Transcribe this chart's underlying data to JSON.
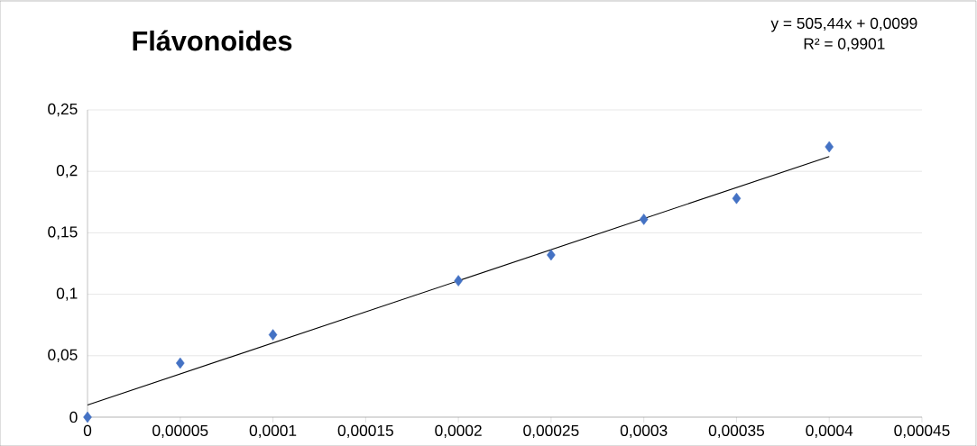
{
  "chart_data": {
    "type": "scatter",
    "title": "Flávonoides",
    "annotations": [
      "y = 505,44x + 0,0099",
      "R² = 0,9901"
    ],
    "series": [
      {
        "color": "#4472c4",
        "marker": "diamond",
        "x": [
          0,
          5e-05,
          0.0001,
          0.0002,
          0.00025,
          0.0003,
          0.00035,
          0.0004
        ],
        "values": [
          0,
          0.044,
          0.067,
          0.111,
          0.132,
          0.161,
          0.178,
          0.22
        ]
      },
      {
        "type": "line",
        "color": "#000000",
        "marker": "none",
        "x": [
          0,
          0.0004
        ],
        "values": [
          0.0099,
          0.2121
        ]
      }
    ],
    "xlim": [
      0,
      0.00045
    ],
    "ylim": [
      0,
      0.25
    ],
    "xticks": [
      0,
      {
        "value": 5e-05,
        "label": "0,00005"
      },
      {
        "value": 0.0001,
        "label": "0,0001"
      },
      {
        "value": 0.00015,
        "label": "0,00015"
      },
      {
        "value": 0.0002,
        "label": "0,0002"
      },
      {
        "value": 0.00025,
        "label": "0,00025"
      },
      {
        "value": 0.0003,
        "label": "0,0003"
      },
      {
        "value": 0.00035,
        "label": "0,00035"
      },
      {
        "value": 0.0004,
        "label": "0,0004"
      },
      {
        "value": 0.00045,
        "label": "0,00045"
      }
    ],
    "yticks": [
      0,
      {
        "value": 0.05,
        "label": "0,05"
      },
      {
        "value": 0.1,
        "label": "0,1"
      },
      {
        "value": 0.15,
        "label": "0,15"
      },
      {
        "value": 0.2,
        "label": "0,2"
      },
      {
        "value": 0.25,
        "label": "0,25"
      }
    ],
    "grid": "y"
  }
}
